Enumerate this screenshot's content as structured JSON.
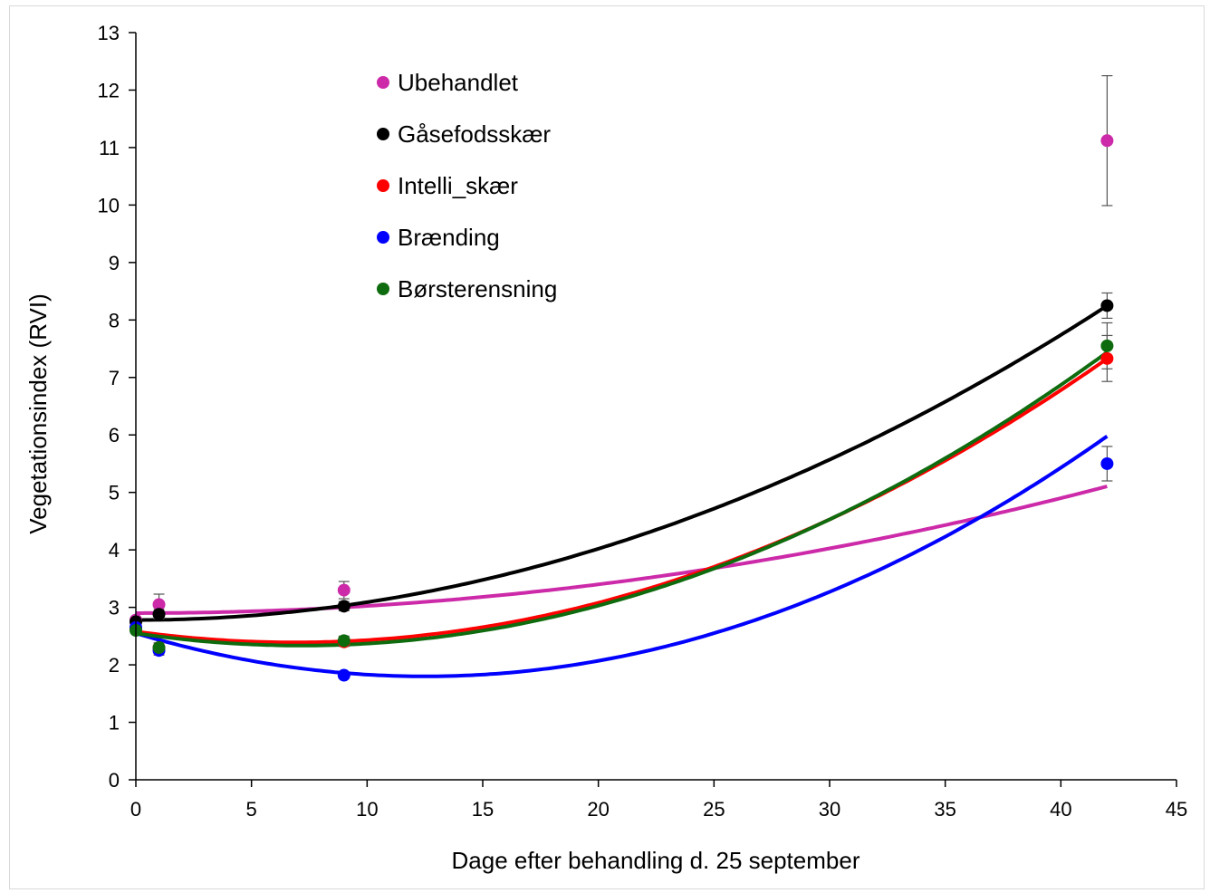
{
  "chart_data": {
    "type": "scatter",
    "xlabel": "Dage efter behandling d. 25 september",
    "ylabel": "Vegetationsindex (RVI)",
    "xlim": [
      0,
      45
    ],
    "ylim": [
      0,
      13
    ],
    "x_ticks": [
      0,
      5,
      10,
      15,
      20,
      25,
      30,
      35,
      40,
      45
    ],
    "y_ticks": [
      0,
      1,
      2,
      3,
      4,
      5,
      6,
      7,
      8,
      9,
      10,
      11,
      12,
      13
    ],
    "grid": false,
    "legend_position": "top-left",
    "trendline": "polynomial-order-2",
    "series": [
      {
        "name": "Ubehandlet",
        "color": "#cc2aa8",
        "x": [
          0,
          1,
          9,
          42
        ],
        "y": [
          2.78,
          3.05,
          3.3,
          11.12
        ],
        "error": [
          0.05,
          0.18,
          0.15,
          1.13
        ],
        "fit": [
          2.9,
          0.0,
          0.00125
        ]
      },
      {
        "name": "Gåsefodsskær",
        "color": "#000000",
        "x": [
          0,
          1,
          9,
          42
        ],
        "y": [
          2.75,
          2.88,
          3.02,
          8.25
        ],
        "error": [
          0.05,
          0.08,
          0.08,
          0.22
        ],
        "fit": [
          2.78,
          0.0,
          0.0031
        ]
      },
      {
        "name": "Intelli_skær",
        "color": "#ff0000",
        "x": [
          0,
          1,
          9,
          42
        ],
        "y": [
          2.62,
          2.3,
          2.4,
          7.33
        ],
        "error": [
          0.05,
          0.08,
          0.08,
          0.4
        ],
        "fit": [
          2.58,
          -0.055,
          0.004
        ]
      },
      {
        "name": "Brænding",
        "color": "#0000ff",
        "x": [
          0,
          1,
          9,
          42
        ],
        "y": [
          2.65,
          2.25,
          1.82,
          5.5
        ],
        "error": [
          0.05,
          0.08,
          0.05,
          0.3
        ],
        "fit": [
          2.55,
          -0.12,
          0.0048
        ]
      },
      {
        "name": "Børsterensning",
        "color": "#0e6b0e",
        "x": [
          0,
          1,
          9,
          42
        ],
        "y": [
          2.6,
          2.3,
          2.42,
          7.55
        ],
        "error": [
          0.05,
          0.08,
          0.08,
          0.4
        ],
        "fit": [
          2.55,
          -0.06,
          0.0042
        ]
      }
    ]
  }
}
